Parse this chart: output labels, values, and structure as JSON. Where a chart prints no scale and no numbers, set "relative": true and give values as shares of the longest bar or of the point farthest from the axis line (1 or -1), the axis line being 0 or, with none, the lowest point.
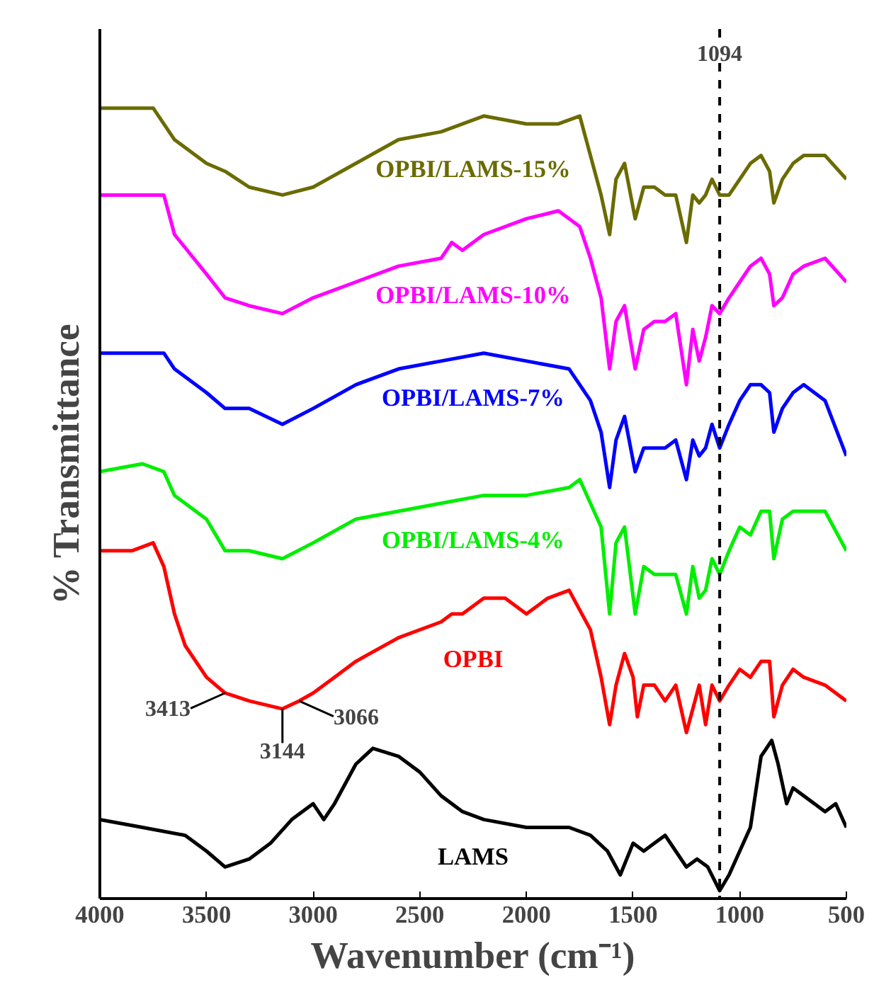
{
  "chart_data": {
    "type": "line",
    "relative": true,
    "xlabel": "Wavenumber (cm⁻¹)",
    "ylabel": "% Transmittance",
    "xlim": [
      4000,
      500
    ],
    "xticks": [
      4000,
      3500,
      3000,
      2500,
      2000,
      1500,
      1000,
      500
    ],
    "grid": false,
    "line_style": "solid",
    "tick_labels": "x",
    "x": [
      4000,
      3800,
      3600,
      3500,
      3413,
      3300,
      3200,
      3100,
      3000,
      2950,
      2900,
      2800,
      2720,
      2600,
      2500,
      2400,
      2300,
      2200,
      2000,
      1800,
      1700,
      1620,
      1560,
      1500,
      1450,
      1400,
      1350,
      1300,
      1250,
      1200,
      1150,
      1094,
      1050,
      1000,
      950,
      900,
      850,
      820,
      780,
      750,
      700,
      650,
      600,
      550,
      500
    ],
    "series": [
      {
        "name": "LAMS",
        "color": "#000000",
        "values": [
          0.1,
          0.09,
          0.08,
          0.06,
          0.04,
          0.05,
          0.07,
          0.1,
          0.12,
          0.1,
          0.12,
          0.17,
          0.19,
          0.18,
          0.16,
          0.13,
          0.11,
          0.1,
          0.09,
          0.09,
          0.08,
          0.06,
          0.03,
          0.07,
          0.06,
          0.07,
          0.08,
          0.06,
          0.04,
          0.05,
          0.04,
          0.01,
          0.03,
          0.06,
          0.09,
          0.18,
          0.2,
          0.17,
          0.12,
          0.14,
          0.13,
          0.12,
          0.11,
          0.12,
          0.09
        ]
      },
      {
        "name": "OPBI",
        "color": "#ff0000",
        "x": [
          4000,
          3850,
          3750,
          3700,
          3650,
          3600,
          3500,
          3413,
          3300,
          3144,
          3066,
          3000,
          2900,
          2800,
          2600,
          2400,
          2350,
          2300,
          2200,
          2100,
          2000,
          1900,
          1800,
          1700,
          1650,
          1610,
          1580,
          1540,
          1500,
          1480,
          1450,
          1400,
          1350,
          1300,
          1250,
          1220,
          1190,
          1160,
          1130,
          1094,
          1050,
          1000,
          950,
          900,
          860,
          840,
          800,
          750,
          700,
          600,
          500
        ],
        "values": [
          0.44,
          0.44,
          0.45,
          0.42,
          0.36,
          0.32,
          0.28,
          0.26,
          0.25,
          0.24,
          0.25,
          0.26,
          0.28,
          0.3,
          0.33,
          0.35,
          0.36,
          0.36,
          0.38,
          0.38,
          0.36,
          0.38,
          0.39,
          0.34,
          0.28,
          0.22,
          0.27,
          0.31,
          0.28,
          0.23,
          0.27,
          0.27,
          0.25,
          0.27,
          0.21,
          0.24,
          0.27,
          0.22,
          0.27,
          0.25,
          0.27,
          0.29,
          0.28,
          0.3,
          0.3,
          0.23,
          0.27,
          0.29,
          0.28,
          0.27,
          0.25
        ]
      },
      {
        "name": "OPBI/LAMS-4%",
        "color": "#00ee00",
        "x": [
          4000,
          3800,
          3700,
          3650,
          3500,
          3413,
          3300,
          3144,
          3000,
          2800,
          2600,
          2400,
          2200,
          2000,
          1800,
          1750,
          1700,
          1650,
          1610,
          1580,
          1540,
          1490,
          1450,
          1400,
          1350,
          1300,
          1250,
          1220,
          1190,
          1160,
          1130,
          1094,
          1050,
          1000,
          950,
          900,
          860,
          840,
          800,
          750,
          700,
          600,
          500
        ],
        "values": [
          0.54,
          0.55,
          0.54,
          0.51,
          0.48,
          0.44,
          0.44,
          0.43,
          0.45,
          0.48,
          0.49,
          0.5,
          0.51,
          0.51,
          0.52,
          0.53,
          0.5,
          0.47,
          0.36,
          0.45,
          0.47,
          0.36,
          0.42,
          0.41,
          0.41,
          0.41,
          0.36,
          0.42,
          0.38,
          0.39,
          0.43,
          0.41,
          0.44,
          0.47,
          0.46,
          0.49,
          0.49,
          0.43,
          0.48,
          0.49,
          0.49,
          0.49,
          0.44
        ]
      },
      {
        "name": "OPBI/LAMS-7%",
        "color": "#0000ff",
        "x": [
          4000,
          3800,
          3700,
          3650,
          3500,
          3413,
          3300,
          3144,
          3000,
          2800,
          2600,
          2400,
          2200,
          2000,
          1800,
          1700,
          1650,
          1610,
          1580,
          1540,
          1490,
          1450,
          1400,
          1350,
          1300,
          1250,
          1220,
          1190,
          1160,
          1130,
          1094,
          1050,
          1000,
          950,
          900,
          860,
          840,
          800,
          750,
          700,
          600,
          500
        ],
        "values": [
          0.69,
          0.69,
          0.69,
          0.67,
          0.64,
          0.62,
          0.62,
          0.6,
          0.62,
          0.65,
          0.67,
          0.68,
          0.69,
          0.68,
          0.67,
          0.63,
          0.59,
          0.52,
          0.58,
          0.61,
          0.54,
          0.57,
          0.57,
          0.57,
          0.58,
          0.53,
          0.58,
          0.56,
          0.57,
          0.6,
          0.57,
          0.6,
          0.63,
          0.65,
          0.65,
          0.64,
          0.59,
          0.62,
          0.64,
          0.65,
          0.63,
          0.56
        ]
      },
      {
        "name": "OPBI/LAMS-10%",
        "color": "#ff00ff",
        "x": [
          4000,
          3800,
          3700,
          3650,
          3500,
          3413,
          3300,
          3144,
          3000,
          2800,
          2600,
          2400,
          2350,
          2300,
          2200,
          2000,
          1850,
          1750,
          1700,
          1650,
          1610,
          1580,
          1540,
          1490,
          1450,
          1400,
          1350,
          1300,
          1250,
          1220,
          1190,
          1160,
          1130,
          1094,
          1050,
          1000,
          950,
          900,
          860,
          840,
          800,
          750,
          700,
          600,
          500
        ],
        "values": [
          0.89,
          0.89,
          0.89,
          0.84,
          0.79,
          0.76,
          0.75,
          0.74,
          0.76,
          0.78,
          0.8,
          0.81,
          0.83,
          0.82,
          0.84,
          0.86,
          0.87,
          0.85,
          0.81,
          0.76,
          0.67,
          0.73,
          0.75,
          0.67,
          0.72,
          0.73,
          0.73,
          0.74,
          0.65,
          0.72,
          0.68,
          0.71,
          0.75,
          0.74,
          0.76,
          0.78,
          0.8,
          0.81,
          0.79,
          0.75,
          0.76,
          0.79,
          0.8,
          0.81,
          0.78
        ]
      },
      {
        "name": "OPBI/LAMS-15%",
        "color": "#6b6b00",
        "x": [
          4000,
          3850,
          3750,
          3650,
          3500,
          3413,
          3300,
          3144,
          3000,
          2800,
          2600,
          2400,
          2200,
          2000,
          1850,
          1750,
          1700,
          1650,
          1610,
          1580,
          1540,
          1490,
          1450,
          1400,
          1350,
          1300,
          1250,
          1220,
          1190,
          1160,
          1130,
          1094,
          1050,
          1000,
          950,
          900,
          860,
          840,
          800,
          750,
          700,
          600,
          500
        ],
        "values": [
          1.0,
          1.0,
          1.0,
          0.96,
          0.93,
          0.92,
          0.9,
          0.89,
          0.9,
          0.93,
          0.96,
          0.97,
          0.99,
          0.98,
          0.98,
          0.99,
          0.94,
          0.89,
          0.84,
          0.91,
          0.93,
          0.86,
          0.9,
          0.9,
          0.89,
          0.89,
          0.83,
          0.89,
          0.88,
          0.89,
          0.91,
          0.89,
          0.89,
          0.91,
          0.93,
          0.94,
          0.92,
          0.88,
          0.91,
          0.93,
          0.94,
          0.94,
          0.91
        ]
      }
    ],
    "ref_lines": [
      {
        "axis": "x",
        "value": 1094,
        "label": "1094",
        "line_style": "dashed",
        "color": "#000000"
      }
    ],
    "annotations": [
      {
        "text": "3413",
        "x": 3413,
        "y": 0.26
      },
      {
        "text": "3144",
        "x": 3144,
        "y": 0.24
      },
      {
        "text": "3066",
        "x": 3066,
        "y": 0.25
      }
    ]
  }
}
